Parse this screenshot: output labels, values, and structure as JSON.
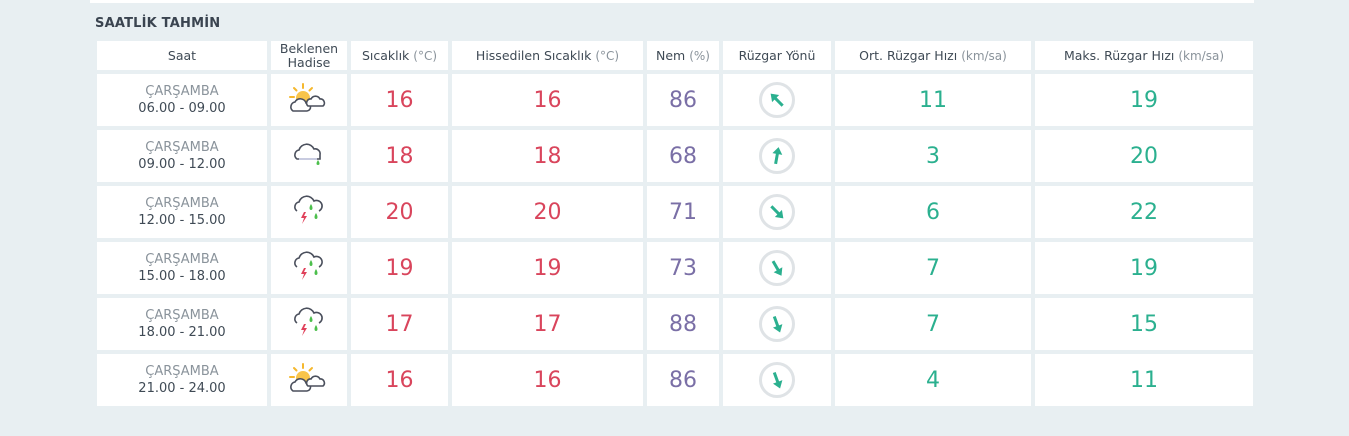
{
  "section_title": "SAATLİK TAHMİN",
  "colors": {
    "temperature": "#d9455c",
    "humidity": "#7a6fa6",
    "wind": "#2bb08f"
  },
  "headers": {
    "saat": "Saat",
    "hadise_1": "Beklenen",
    "hadise_2": "Hadise",
    "sicaklik": "Sıcaklık",
    "sicaklik_unit": "(°C)",
    "hissedilen": "Hissedilen Sıcaklık",
    "hissedilen_unit": "(°C)",
    "nem": "Nem",
    "nem_unit": "(%)",
    "ruzgar_yonu": "Rüzgar Yönü",
    "ort_ruzgar": "Ort. Rüzgar Hızı",
    "ort_ruzgar_unit": "(km/sa)",
    "maks_ruzgar": "Maks. Rüzgar Hızı",
    "maks_ruzgar_unit": "(km/sa)"
  },
  "rows": [
    {
      "day": "ÇARŞAMBA",
      "time": "06.00 - 09.00",
      "icon": "partly-cloudy-icon",
      "temp": "16",
      "feels": "16",
      "humidity": "86",
      "wind_dir_deg": -45,
      "avg_wind": "11",
      "max_wind": "19"
    },
    {
      "day": "ÇARŞAMBA",
      "time": "09.00 - 12.00",
      "icon": "light-rain-icon",
      "temp": "18",
      "feels": "18",
      "humidity": "68",
      "wind_dir_deg": 10,
      "avg_wind": "3",
      "max_wind": "20"
    },
    {
      "day": "ÇARŞAMBA",
      "time": "12.00 - 15.00",
      "icon": "thunderstorm-icon",
      "temp": "20",
      "feels": "20",
      "humidity": "71",
      "wind_dir_deg": 135,
      "avg_wind": "6",
      "max_wind": "22"
    },
    {
      "day": "ÇARŞAMBA",
      "time": "15.00 - 18.00",
      "icon": "thunderstorm-icon",
      "temp": "19",
      "feels": "19",
      "humidity": "73",
      "wind_dir_deg": 150,
      "avg_wind": "7",
      "max_wind": "19"
    },
    {
      "day": "ÇARŞAMBA",
      "time": "18.00 - 21.00",
      "icon": "thunderstorm-icon",
      "temp": "17",
      "feels": "17",
      "humidity": "88",
      "wind_dir_deg": 160,
      "avg_wind": "7",
      "max_wind": "15"
    },
    {
      "day": "ÇARŞAMBA",
      "time": "21.00 - 24.00",
      "icon": "partly-cloudy-icon",
      "temp": "16",
      "feels": "16",
      "humidity": "86",
      "wind_dir_deg": 160,
      "avg_wind": "4",
      "max_wind": "11"
    }
  ]
}
